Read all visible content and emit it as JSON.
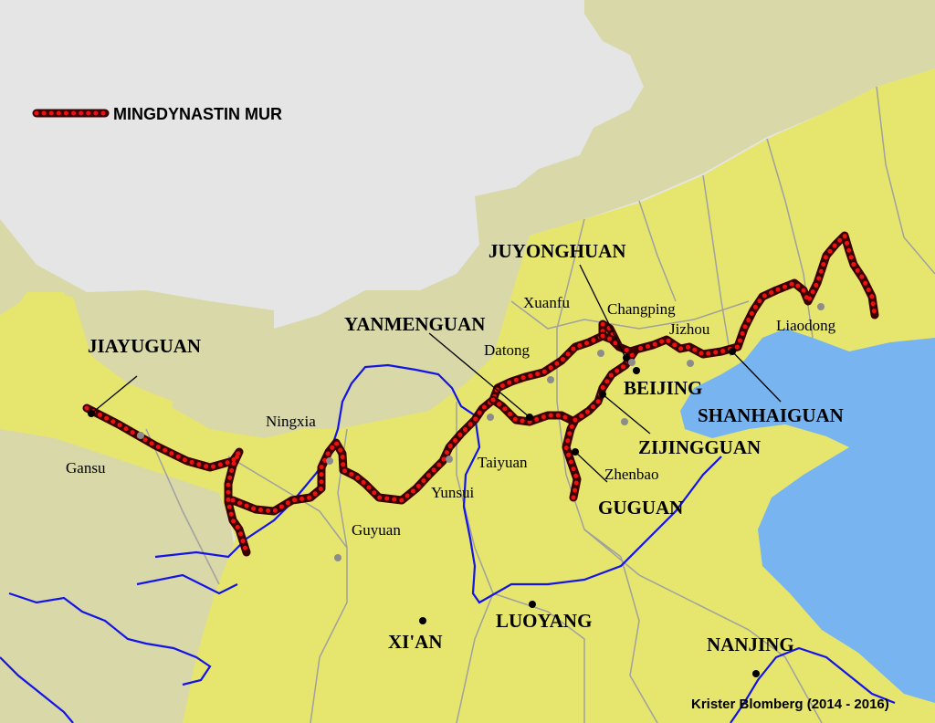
{
  "legend": {
    "wall_label": "MINGDYNASTIN MUR"
  },
  "credit": "Krister Blomberg (2014 - 2016)",
  "passes": {
    "jiayuguan": "JIAYUGUAN",
    "yanmenguan": "YANMENGUAN",
    "juyonghuan": "JUYONGHUAN",
    "shanhaiguan": "SHANHAIGUAN",
    "zijingguan": "ZIJINGGUAN",
    "guguan": "GUGUAN"
  },
  "cities": {
    "beijing": "BEIJING",
    "xian": "XI'AN",
    "luoyang": "LUOYANG",
    "nanjing": "NANJING"
  },
  "towns": {
    "gansu": "Gansu",
    "ningxia": "Ningxia",
    "guyuan": "Guyuan",
    "yunsui": "Yunsui",
    "taiyuan": "Taiyuan",
    "datong": "Datong",
    "xuanfu": "Xuanfu",
    "changping": "Changping",
    "jizhou": "Jizhou",
    "liaodong": "Liaodong",
    "zhenbao": "Zhenbao"
  },
  "colors": {
    "ming_territory": "#e6e66e",
    "neighbor_land": "#d8d8a8",
    "steppe": "#e5e5e5",
    "sea": "#78b4f0",
    "river": "#1414e6",
    "wall_outline": "#3a0000",
    "wall_dots": "#ee1111",
    "border": "#a0a0a0",
    "major_city_dot": "#000000",
    "minor_city_dot": "#8c8c8c"
  }
}
